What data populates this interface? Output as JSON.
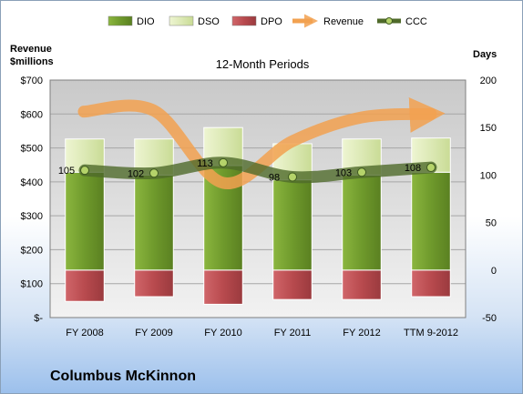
{
  "chart_data": {
    "type": "bar",
    "title": "12-Month Periods",
    "categories": [
      "FY 2008",
      "FY 2009",
      "FY 2010",
      "FY 2011",
      "FY 2012",
      "TTM 9-2012"
    ],
    "left_axis": {
      "label_line1": "Revenue",
      "label_line2": "$millions",
      "ticks": [
        "$-",
        "$100",
        "$200",
        "$300",
        "$400",
        "$500",
        "$600",
        "$700"
      ],
      "range": [
        0,
        700
      ]
    },
    "right_axis": {
      "label": "Days",
      "ticks": [
        "-50",
        "0",
        "50",
        "100",
        "150",
        "200"
      ],
      "range": [
        -50,
        200
      ]
    },
    "series": [
      {
        "name": "DIO",
        "kind": "stacked-bar",
        "values": [
          103,
          100,
          110,
          95,
          100,
          103
        ],
        "color": "#6f9a2c"
      },
      {
        "name": "DSO",
        "kind": "stacked-bar",
        "values": [
          35,
          38,
          40,
          38,
          38,
          36
        ],
        "color": "#dce9b5"
      },
      {
        "name": "DPO",
        "kind": "bar-below-zero",
        "values": [
          -33,
          -28,
          -36,
          -31,
          -31,
          -28
        ],
        "color": "#b84a4e"
      },
      {
        "name": "Revenue",
        "kind": "line",
        "values": [
          607,
          610,
          397,
          520,
          590,
          600
        ],
        "color": "#f2a150"
      },
      {
        "name": "CCC",
        "kind": "line",
        "values": [
          105,
          102,
          113,
          98,
          103,
          108
        ],
        "color": "#4f6a2a",
        "data_labels": [
          "105",
          "102",
          "113",
          "98",
          "103",
          "108"
        ]
      }
    ],
    "legend_position": "top",
    "grid": true
  },
  "footer": {
    "company": "Columbus McKinnon"
  }
}
